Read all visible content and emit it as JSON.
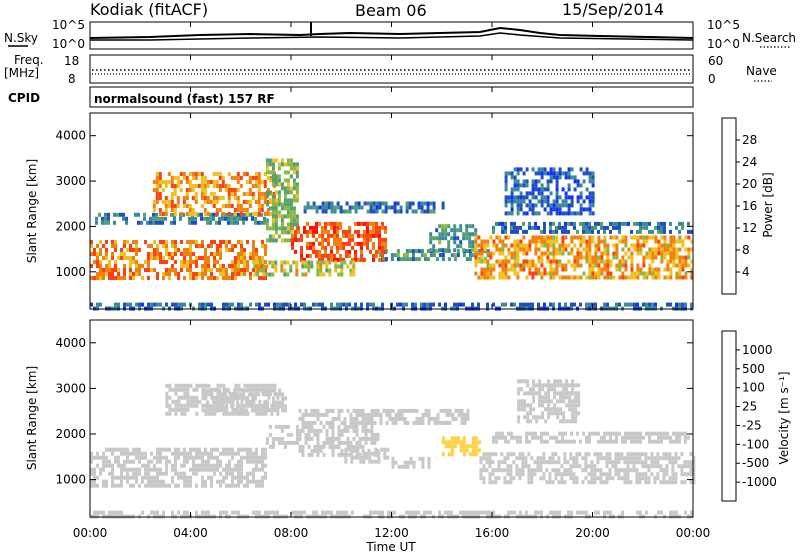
{
  "header": {
    "station": "Kodiak (fitACF)",
    "beam": "Beam 06",
    "date": "15/Sep/2014"
  },
  "params": {
    "nsky_label": "N.Sky",
    "nsearch_label": "N.Search",
    "freq_label": "Freq.",
    "freq_unit": "[MHz]",
    "nave_label": "Nave",
    "cpid_label": "CPID",
    "cpid_value": "normalsound (fast) 157 RF",
    "noise_ticks": [
      "10^5",
      "10^0"
    ],
    "freq_ticks": [
      "18",
      "8"
    ],
    "nave_ticks": [
      "60",
      "0"
    ]
  },
  "axis": {
    "xlabel": "Time UT",
    "xticks": [
      "00:00",
      "04:00",
      "08:00",
      "12:00",
      "16:00",
      "20:00",
      "00:00"
    ],
    "ylabel": "Slant Range [km]",
    "yticks": [
      "4000",
      "3000",
      "2000",
      "1000"
    ]
  },
  "chart_data": [
    {
      "type": "heatmap",
      "title": "",
      "xlabel": "Time UT",
      "ylabel": "Slant Range [km]",
      "xlim": [
        "00:00",
        "24:00"
      ],
      "ylim": [
        180,
        4500
      ],
      "colorbar": {
        "label": "Power [dB]",
        "ticks": [
          "28",
          "24",
          "20",
          "16",
          "12",
          "8",
          "4"
        ],
        "range": [
          0,
          30
        ],
        "colors": [
          "#1030ff",
          "#2050c0",
          "#3a8a9a",
          "#55a070",
          "#8ab840",
          "#f0c020",
          "#f08010",
          "#ff4010",
          "#ff1000"
        ]
      },
      "regions": [
        {
          "t0": 0.0,
          "t1": 7.0,
          "r0": 850,
          "r1": 1700,
          "value": 22
        },
        {
          "t0": 0.2,
          "t1": 7.0,
          "r0": 2050,
          "r1": 2300,
          "value": 8
        },
        {
          "t0": 2.5,
          "t1": 7.3,
          "r0": 2300,
          "r1": 3200,
          "value": 21
        },
        {
          "t0": 7.0,
          "t1": 8.3,
          "r0": 1700,
          "r1": 3500,
          "value": 14
        },
        {
          "t0": 8.0,
          "t1": 11.8,
          "r0": 1300,
          "r1": 2100,
          "value": 24
        },
        {
          "t0": 6.5,
          "t1": 10.5,
          "r0": 950,
          "r1": 1250,
          "value": 17
        },
        {
          "t0": 8.5,
          "t1": 14.0,
          "r0": 2300,
          "r1": 2550,
          "value": 7
        },
        {
          "t0": 11.5,
          "t1": 15.8,
          "r0": 1250,
          "r1": 1500,
          "value": 10
        },
        {
          "t0": 13.5,
          "t1": 15.3,
          "r0": 1500,
          "r1": 2050,
          "value": 10
        },
        {
          "t0": 15.3,
          "t1": 24.0,
          "r0": 900,
          "r1": 1800,
          "value": 20
        },
        {
          "t0": 16.0,
          "t1": 24.0,
          "r0": 1900,
          "r1": 2100,
          "value": 7
        },
        {
          "t0": 16.5,
          "t1": 20.0,
          "r0": 2300,
          "r1": 3300,
          "value": 6
        },
        {
          "t0": 0.0,
          "t1": 24.0,
          "r0": 180,
          "r1": 320,
          "value": 6
        }
      ]
    },
    {
      "type": "heatmap",
      "title": "",
      "xlabel": "Time UT",
      "ylabel": "Slant Range [km]",
      "xlim": [
        "00:00",
        "24:00"
      ],
      "ylim": [
        180,
        4500
      ],
      "colorbar": {
        "label": "Velocity [m s⁻¹]",
        "ticks": [
          "1000",
          "500",
          "100",
          "25",
          "-25",
          "-100",
          "-500",
          "-1000"
        ],
        "range": [
          -1200,
          1200
        ],
        "colors": [
          "#ff0000",
          "#ff5000",
          "#ff9010",
          "#ffd040",
          "#c8c8c8",
          "#c8c8c8",
          "#40c040",
          "#30a030",
          "#3070a0",
          "#1030ff"
        ]
      },
      "regions": [
        {
          "t0": 0.0,
          "t1": 7.0,
          "r0": 850,
          "r1": 1700,
          "value": 0
        },
        {
          "t0": 7.0,
          "t1": 8.3,
          "r0": 1700,
          "r1": 2200,
          "value": 0
        },
        {
          "t0": 8.3,
          "t1": 15.0,
          "r0": 2200,
          "r1": 2550,
          "value": 0
        },
        {
          "t0": 3.0,
          "t1": 7.5,
          "r0": 2400,
          "r1": 3100,
          "value": 150
        },
        {
          "t0": 4.5,
          "t1": 7.8,
          "r0": 2500,
          "r1": 3000,
          "value": -200
        },
        {
          "t0": 8.3,
          "t1": 11.5,
          "r0": 1500,
          "r1": 2200,
          "value": 120
        },
        {
          "t0": 10.0,
          "t1": 11.8,
          "r0": 1350,
          "r1": 1700,
          "value": -150
        },
        {
          "t0": 12.0,
          "t1": 13.5,
          "r0": 1250,
          "r1": 1500,
          "value": -200
        },
        {
          "t0": 14.0,
          "t1": 15.5,
          "r0": 1550,
          "r1": 1950,
          "value": -400
        },
        {
          "t0": 15.5,
          "t1": 24.0,
          "r0": 900,
          "r1": 1600,
          "value": 0
        },
        {
          "t0": 16.0,
          "t1": 24.0,
          "r0": 1850,
          "r1": 2050,
          "value": 0
        },
        {
          "t0": 17.0,
          "t1": 19.5,
          "r0": 2300,
          "r1": 3200,
          "value": 200
        },
        {
          "t0": 0.0,
          "t1": 24.0,
          "r0": 180,
          "r1": 320,
          "value": 0
        }
      ]
    }
  ]
}
